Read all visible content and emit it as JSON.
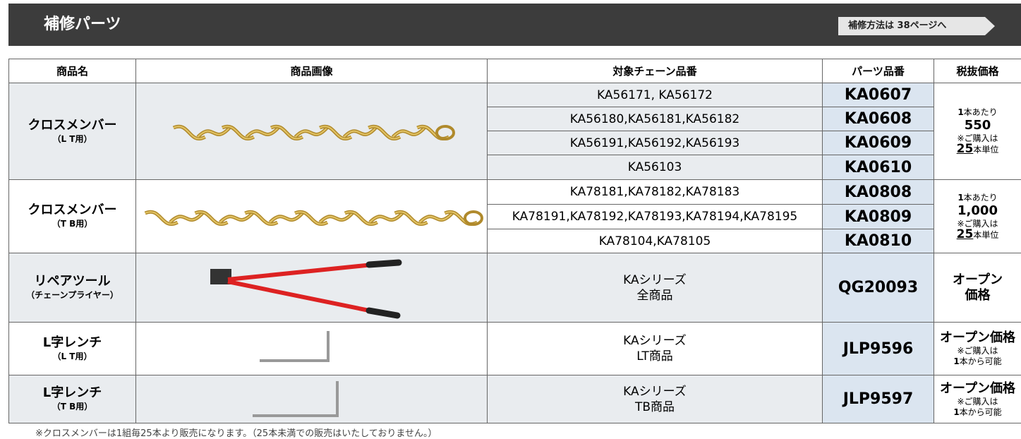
{
  "header": {
    "title": "補修パーツ",
    "link": "補修方法は 38ページへ"
  },
  "table": {
    "columns": [
      "商品名",
      "商品画像",
      "対象チェーン品番",
      "パーツ品番",
      "税抜価格"
    ],
    "groups": [
      {
        "name": "クロスメンバー",
        "sub": "（L T用）",
        "rows": [
          {
            "chains": [
              "KA56171, KA56172"
            ],
            "part": "KA0607"
          },
          {
            "chains": [
              "KA56180,KA56181,KA56182"
            ],
            "part": "KA0608"
          },
          {
            "chains": [
              "KA56191,KA56192,KA56193"
            ],
            "part": "KA0609"
          },
          {
            "chains": [
              "KA56103"
            ],
            "part": "KA0610"
          }
        ],
        "price": {
          "unit_count": "1",
          "unit_text": "本あたり",
          "amount": "550",
          "note": "※ご購入は",
          "qty": "25",
          "qty_text": "本単位"
        }
      },
      {
        "name": "クロスメンバー",
        "sub": "（T B用）",
        "rows": [
          {
            "chains": [
              "KA78181,KA78182,KA78183"
            ],
            "part": "KA0808"
          },
          {
            "chains": [
              "KA78191,KA78192,KA78193,KA78194,KA78195"
            ],
            "part": "KA0809"
          },
          {
            "chains": [
              "KA78104,KA78105"
            ],
            "part": "KA0810"
          }
        ],
        "price": {
          "unit_count": "1",
          "unit_text": "本あたり",
          "amount": "1,000",
          "note": "※ご購入は",
          "qty": "25",
          "qty_text": "本単位"
        }
      },
      {
        "name": "リペアツール",
        "sub": "（チェーンプライヤー）",
        "rows": [
          {
            "chains": [
              "KAシリーズ",
              "全商品"
            ],
            "part": "QG20093"
          }
        ],
        "price": {
          "lines": [
            "オープン",
            "価格"
          ]
        }
      },
      {
        "name": "L字レンチ",
        "sub": "（L T用）",
        "rows": [
          {
            "chains": [
              "KAシリーズ",
              "LT商品"
            ],
            "part": "JLP9596"
          }
        ],
        "price": {
          "title": "オープン価格",
          "note": "※ご購入は",
          "qty": "1",
          "qty_text": "本から可能"
        }
      },
      {
        "name": "L字レンチ",
        "sub": "（T B用）",
        "rows": [
          {
            "chains": [
              "KAシリーズ",
              "TB商品"
            ],
            "part": "JLP9597"
          }
        ],
        "price": {
          "title": "オープン価格",
          "note": "※ご購入は",
          "qty": "1",
          "qty_text": "本から可能"
        }
      }
    ]
  },
  "footnote": "※クロスメンバーは1組毎25本より販売になります。（25本未満での販売はいたしておりません。）"
}
